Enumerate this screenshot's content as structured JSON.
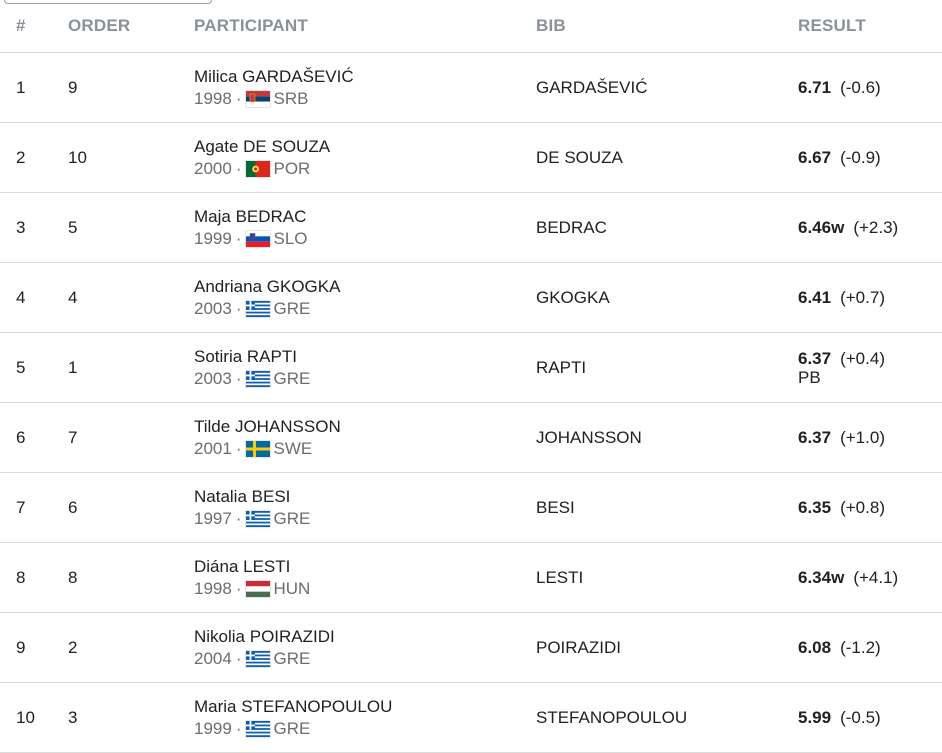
{
  "columns": {
    "pos": "#",
    "order": "ORDER",
    "participant": "PARTICIPANT",
    "bib": "BIB",
    "result": "RESULT"
  },
  "rows": [
    {
      "pos": "1",
      "order": "9",
      "name": "Milica GARDAŠEVIĆ",
      "year": "1998",
      "country": "SRB",
      "flag": "srb",
      "bib": "GARDAŠEVIĆ",
      "mark": "6.71",
      "wind": "(-0.6)",
      "note": ""
    },
    {
      "pos": "2",
      "order": "10",
      "name": "Agate DE SOUZA",
      "year": "2000",
      "country": "POR",
      "flag": "por",
      "bib": "DE SOUZA",
      "mark": "6.67",
      "wind": "(-0.9)",
      "note": ""
    },
    {
      "pos": "3",
      "order": "5",
      "name": "Maja BEDRAC",
      "year": "1999",
      "country": "SLO",
      "flag": "slo",
      "bib": "BEDRAC",
      "mark": "6.46w",
      "wind": "(+2.3)",
      "note": ""
    },
    {
      "pos": "4",
      "order": "4",
      "name": "Andriana GKOGKA",
      "year": "2003",
      "country": "GRE",
      "flag": "gre",
      "bib": "GKOGKA",
      "mark": "6.41",
      "wind": "(+0.7)",
      "note": ""
    },
    {
      "pos": "5",
      "order": "1",
      "name": "Sotiria RAPTI",
      "year": "2003",
      "country": "GRE",
      "flag": "gre",
      "bib": "RAPTI",
      "mark": "6.37",
      "wind": "(+0.4)",
      "note": "PB"
    },
    {
      "pos": "6",
      "order": "7",
      "name": "Tilde JOHANSSON",
      "year": "2001",
      "country": "SWE",
      "flag": "swe",
      "bib": "JOHANSSON",
      "mark": "6.37",
      "wind": "(+1.0)",
      "note": ""
    },
    {
      "pos": "7",
      "order": "6",
      "name": "Natalia BESI",
      "year": "1997",
      "country": "GRE",
      "flag": "gre",
      "bib": "BESI",
      "mark": "6.35",
      "wind": "(+0.8)",
      "note": ""
    },
    {
      "pos": "8",
      "order": "8",
      "name": "Diána LESTI",
      "year": "1998",
      "country": "HUN",
      "flag": "hun",
      "bib": "LESTI",
      "mark": "6.34w",
      "wind": "(+4.1)",
      "note": ""
    },
    {
      "pos": "9",
      "order": "2",
      "name": "Nikolia POIRAZIDI",
      "year": "2004",
      "country": "GRE",
      "flag": "gre",
      "bib": "POIRAZIDI",
      "mark": "6.08",
      "wind": "(-1.2)",
      "note": ""
    },
    {
      "pos": "10",
      "order": "3",
      "name": "Maria STEFANOPOULOU",
      "year": "1999",
      "country": "GRE",
      "flag": "gre",
      "bib": "STEFANOPOULOU",
      "mark": "5.99",
      "wind": "(-0.5)",
      "note": ""
    }
  ],
  "colors": {
    "header_text": "#8a9199",
    "divider": "#dcdcdc",
    "meta_text": "#6d6d6d"
  }
}
